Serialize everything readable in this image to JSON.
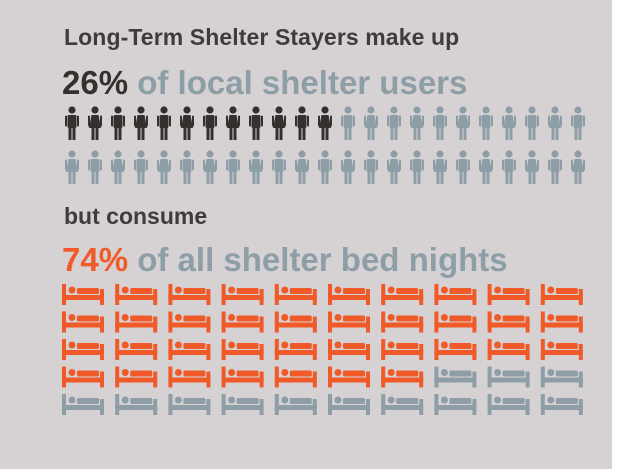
{
  "infographic": {
    "title": "Long-Term Shelter Stayers make up",
    "stat1": {
      "value": "26%",
      "text": "of local shelter users"
    },
    "subtitle": "but consume",
    "stat2": {
      "value": "74%",
      "text": "of all shelter bed nights"
    }
  },
  "pictograms": {
    "people": {
      "rows": 2,
      "per_row": 23,
      "highlighted": 12,
      "total": 46,
      "icon": "person-icon"
    },
    "beds": {
      "rows": 5,
      "per_row": 10,
      "highlighted": 37,
      "total": 50,
      "icon": "bed-icon"
    }
  },
  "colors": {
    "background": "#d6d2d3",
    "dark": "#35302d",
    "muted": "#8e9ea6",
    "accent": "#f05a28",
    "text": "#3e3d3b"
  }
}
